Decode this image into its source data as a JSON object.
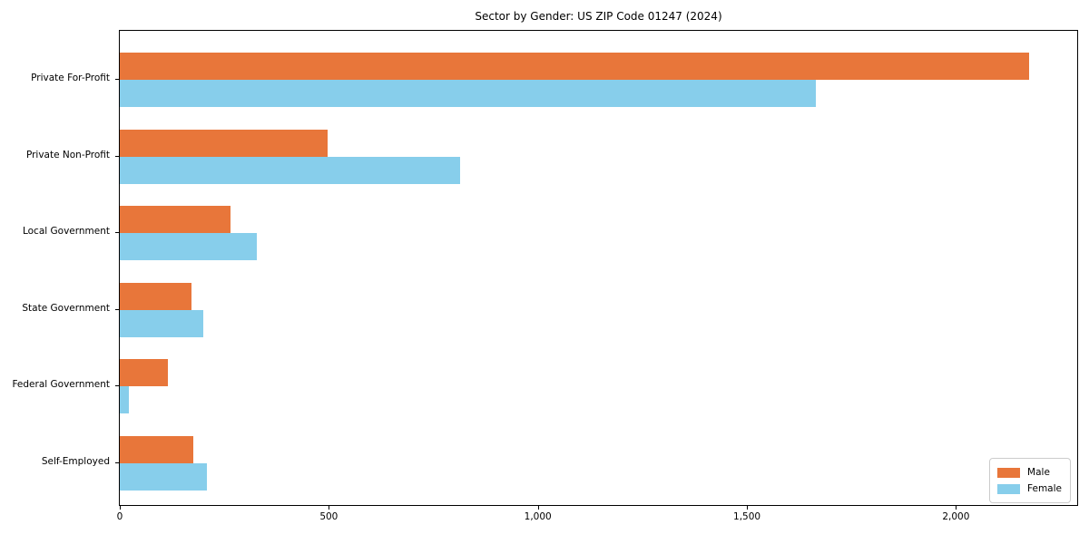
{
  "chart_data": {
    "type": "bar",
    "orientation": "horizontal",
    "title": "Sector by Gender: US ZIP Code 01247 (2024)",
    "categories": [
      "Private For-Profit",
      "Private Non-Profit",
      "Local Government",
      "State Government",
      "Federal Government",
      "Self-Employed"
    ],
    "series": [
      {
        "name": "Male",
        "color": "#e8763a",
        "values": [
          2176,
          496,
          264,
          171,
          115,
          175
        ]
      },
      {
        "name": "Female",
        "color": "#87ceeb",
        "values": [
          1664,
          814,
          327,
          200,
          22,
          208
        ]
      }
    ],
    "xlabel": "",
    "ylabel": "",
    "xlim": [
      0,
      2290
    ],
    "xticks": [
      {
        "value": 0,
        "label": "0"
      },
      {
        "value": 500,
        "label": "500"
      },
      {
        "value": 1000,
        "label": "1,000"
      },
      {
        "value": 1500,
        "label": "1,500"
      },
      {
        "value": 2000,
        "label": "2,000"
      }
    ],
    "grid": false,
    "legend": {
      "position": "lower right"
    },
    "colors": {
      "male": "#e8763a",
      "female": "#87ceeb",
      "spine": "#000000",
      "legend_border": "#cccccc"
    }
  }
}
